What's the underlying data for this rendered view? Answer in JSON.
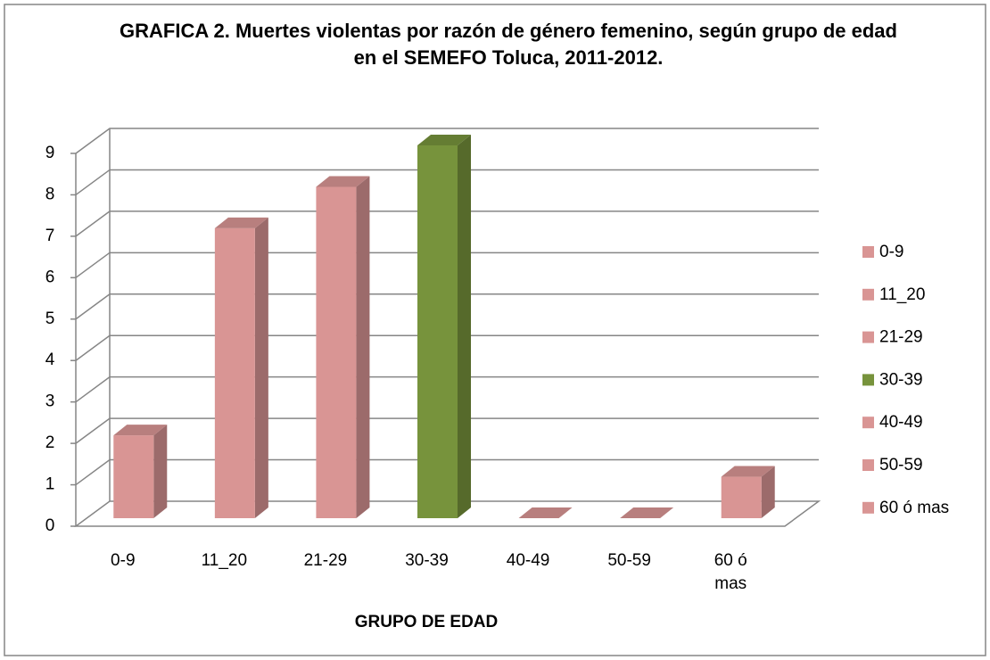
{
  "chart_data": {
    "type": "bar3d",
    "title": "GRAFICA 2. Muertes violentas por razón de género femenino, según grupo de edad en el SEMEFO Toluca, 2011-2012.",
    "x_label": "GRUPO DE EDAD",
    "categories": [
      "0-9",
      "11_20",
      "21-29",
      "30-39",
      "40-49",
      "50-59",
      "60 ó mas"
    ],
    "values": [
      2,
      7,
      8,
      9,
      0,
      0,
      1
    ],
    "colors": [
      "#d99594",
      "#d99594",
      "#d99594",
      "#77933c",
      "#d99594",
      "#d99594",
      "#d99594"
    ],
    "ylim": [
      0,
      9
    ],
    "yticks": [
      0,
      1,
      2,
      3,
      4,
      5,
      6,
      7,
      8,
      9
    ],
    "grid": true,
    "legend": "right"
  }
}
